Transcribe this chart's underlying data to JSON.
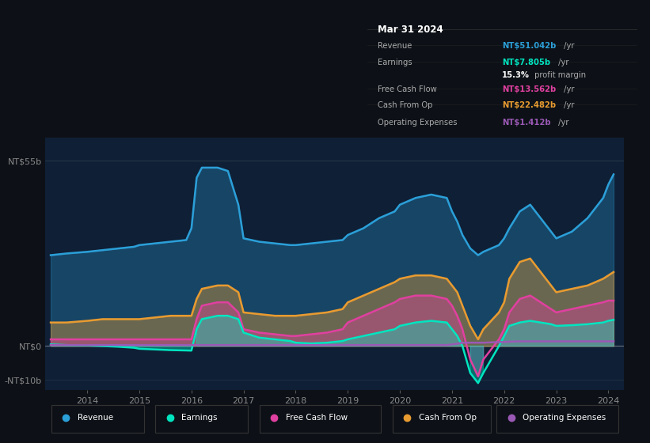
{
  "bg_color": "#0d1117",
  "plot_bg_color": "#0f1f35",
  "ylabel_55": "NT$55b",
  "ylabel_0": "NT$0",
  "ylabel_neg10": "-NT$10b",
  "legend_items": [
    "Revenue",
    "Earnings",
    "Free Cash Flow",
    "Cash From Op",
    "Operating Expenses"
  ],
  "legend_colors": [
    "#2b9fd8",
    "#00e5c0",
    "#e040a0",
    "#e89b30",
    "#9b59b6"
  ],
  "tooltip_title": "Mar 31 2024",
  "x_years": [
    2013.3,
    2013.6,
    2014.0,
    2014.3,
    2014.6,
    2014.9,
    2015.0,
    2015.3,
    2015.6,
    2015.9,
    2016.0,
    2016.1,
    2016.2,
    2016.5,
    2016.7,
    2016.9,
    2017.0,
    2017.3,
    2017.6,
    2017.9,
    2018.0,
    2018.3,
    2018.6,
    2018.9,
    2019.0,
    2019.3,
    2019.6,
    2019.9,
    2020.0,
    2020.3,
    2020.6,
    2020.9,
    2021.0,
    2021.1,
    2021.2,
    2021.35,
    2021.5,
    2021.6,
    2021.9,
    2022.0,
    2022.1,
    2022.3,
    2022.5,
    2022.7,
    2022.9,
    2023.0,
    2023.3,
    2023.6,
    2023.9,
    2024.0,
    2024.1
  ],
  "revenue": [
    27,
    27.5,
    28,
    28.5,
    29,
    29.5,
    30,
    30.5,
    31,
    31.5,
    35,
    50,
    53,
    53,
    52,
    42,
    32,
    31,
    30.5,
    30,
    30,
    30.5,
    31,
    31.5,
    33,
    35,
    38,
    40,
    42,
    44,
    45,
    44,
    40,
    37,
    33,
    29,
    27,
    28,
    30,
    32,
    35,
    40,
    42,
    38,
    34,
    32,
    34,
    38,
    44,
    48,
    51
  ],
  "earnings": [
    0.5,
    0.3,
    0.2,
    0.0,
    -0.2,
    -0.5,
    -0.8,
    -1.0,
    -1.2,
    -1.3,
    -1.35,
    5,
    8,
    9,
    9,
    8,
    4,
    2.5,
    2,
    1.5,
    1,
    0.8,
    1,
    1.5,
    2,
    3,
    4,
    5,
    6,
    7,
    7.5,
    7,
    5,
    3,
    0,
    -8,
    -11,
    -8,
    0,
    3,
    6,
    7,
    7.5,
    7,
    6.5,
    6,
    6.2,
    6.5,
    7,
    7.5,
    7.8
  ],
  "free_cash_flow": [
    2,
    2,
    2,
    2,
    2,
    2,
    2,
    2,
    2,
    2,
    2,
    8,
    12,
    13,
    13,
    10,
    5,
    4,
    3.5,
    3,
    3,
    3.5,
    4,
    5,
    7,
    9,
    11,
    13,
    14,
    15,
    15,
    14,
    12,
    9,
    5,
    -4,
    -9,
    -4,
    2,
    5,
    10,
    14,
    15,
    13,
    11,
    10,
    11,
    12,
    13,
    13.5,
    13.5
  ],
  "cash_from_op": [
    7,
    7,
    7.5,
    8,
    8,
    8,
    8,
    8.5,
    9,
    9,
    9,
    14,
    17,
    18,
    18,
    16,
    10,
    9.5,
    9,
    9,
    9,
    9.5,
    10,
    11,
    13,
    15,
    17,
    19,
    20,
    21,
    21,
    20,
    18,
    16,
    12,
    6,
    2,
    5,
    10,
    13,
    20,
    25,
    26,
    22,
    18,
    16,
    17,
    18,
    20,
    21,
    22
  ],
  "operating_expenses": [
    0.3,
    0.3,
    0.3,
    0.3,
    0.3,
    0.3,
    0.3,
    0.3,
    0.3,
    0.3,
    0.3,
    0.3,
    0.3,
    0.3,
    0.3,
    0.3,
    0.3,
    0.3,
    0.3,
    0.3,
    0.3,
    0.3,
    0.3,
    0.3,
    0.3,
    0.3,
    0.3,
    0.3,
    0.3,
    0.3,
    0.3,
    0.3,
    0.5,
    0.7,
    1.0,
    1.0,
    1.0,
    1.0,
    1.2,
    1.2,
    1.3,
    1.4,
    1.4,
    1.4,
    1.4,
    1.4,
    1.4,
    1.4,
    1.4,
    1.4,
    1.4
  ],
  "ylim_min": -13,
  "ylim_max": 62,
  "xlim_min": 2013.2,
  "xlim_max": 2024.3
}
